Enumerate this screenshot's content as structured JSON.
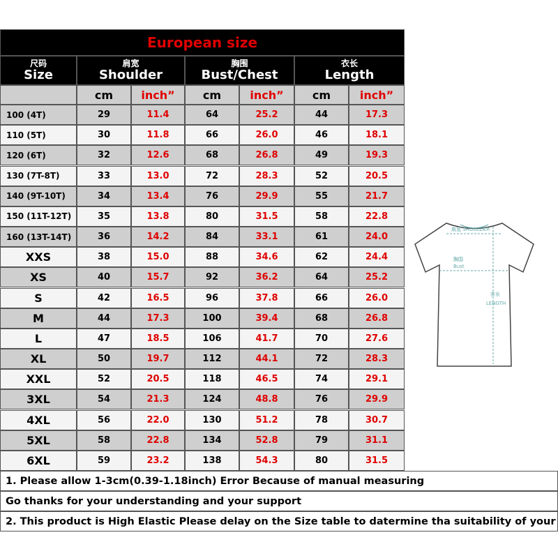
{
  "title": "European size",
  "headers": [
    {
      "cn": "尺码",
      "en": "Size"
    },
    {
      "cn": "肩宽",
      "en": "Shoulder"
    },
    {
      "cn": "胸围",
      "en": "Bust/Chest"
    },
    {
      "cn": "衣长",
      "en": "Length"
    }
  ],
  "units": [
    "cm",
    "inch”",
    "cm",
    "inch”",
    "cm",
    "inch”"
  ],
  "rows": [
    [
      "100 (4T)",
      "29",
      "11.4",
      "64",
      "25.2",
      "44",
      "17.3"
    ],
    [
      "110 (5T)",
      "30",
      "11.8",
      "66",
      "26.0",
      "46",
      "18.1"
    ],
    [
      "120 (6T)",
      "32",
      "12.6",
      "68",
      "26.8",
      "49",
      "19.3"
    ],
    [
      "130 (7T-8T)",
      "33",
      "13.0",
      "72",
      "28.3",
      "52",
      "20.5"
    ],
    [
      "140 (9T-10T)",
      "34",
      "13.4",
      "76",
      "29.9",
      "55",
      "21.7"
    ],
    [
      "150 (11T-12T)",
      "35",
      "13.8",
      "80",
      "31.5",
      "58",
      "22.8"
    ],
    [
      "160 (13T-14T)",
      "36",
      "14.2",
      "84",
      "33.1",
      "61",
      "24.0"
    ],
    [
      "XXS",
      "38",
      "15.0",
      "88",
      "34.6",
      "62",
      "24.4"
    ],
    [
      "XS",
      "40",
      "15.7",
      "92",
      "36.2",
      "64",
      "25.2"
    ],
    [
      "S",
      "42",
      "16.5",
      "96",
      "37.8",
      "66",
      "26.0"
    ],
    [
      "M",
      "44",
      "17.3",
      "100",
      "39.4",
      "68",
      "26.8"
    ],
    [
      "L",
      "47",
      "18.5",
      "106",
      "41.7",
      "70",
      "27.6"
    ],
    [
      "XL",
      "50",
      "19.7",
      "112",
      "44.1",
      "72",
      "28.3"
    ],
    [
      "XXL",
      "52",
      "20.5",
      "118",
      "46.5",
      "74",
      "29.1"
    ],
    [
      "3XL",
      "54",
      "21.3",
      "124",
      "48.8",
      "76",
      "29.9"
    ],
    [
      "4XL",
      "56",
      "22.0",
      "130",
      "51.2",
      "78",
      "30.7"
    ],
    [
      "5XL",
      "58",
      "22.8",
      "134",
      "52.8",
      "79",
      "31.1"
    ],
    [
      "6XL",
      "59",
      "23.2",
      "138",
      "54.3",
      "80",
      "31.5"
    ]
  ],
  "notes": [
    "1. Please allow 1-3cm(0.39-1.18inch) Error Because of manual measuring",
    "Go thanks for your understanding and your support",
    "2. This product is High Elastic  Please delay on the Size table to datermine tha suitability of your"
  ],
  "diagram": {
    "shoulder": "肩宽 SHOULDER",
    "bust_cn": "胸围",
    "bust_en": "Bust",
    "length_cn": "衣长",
    "length_en": "LENGTH"
  }
}
